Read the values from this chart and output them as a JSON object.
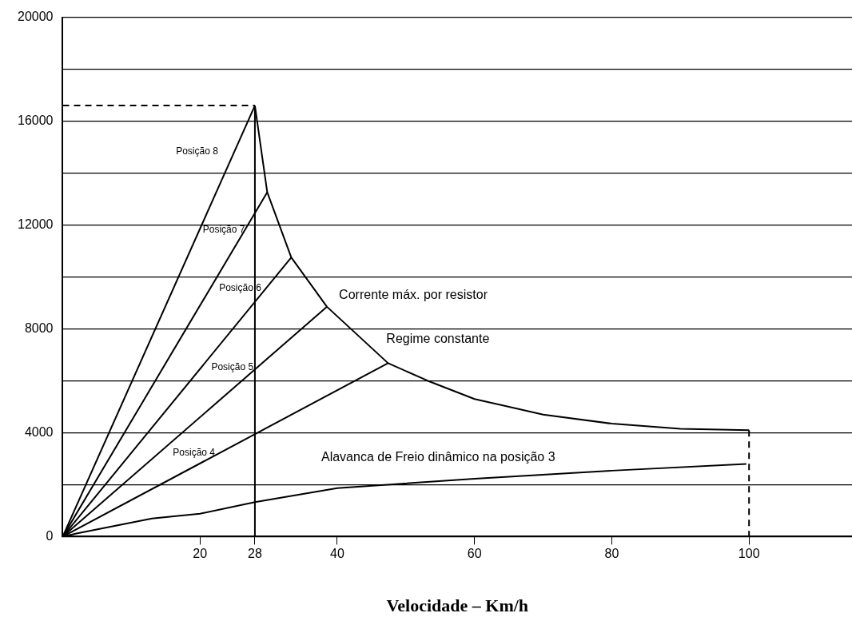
{
  "chart_data": {
    "type": "line",
    "xlabel": "Velocidade – Km/h",
    "xlim": [
      0,
      115
    ],
    "xticks": [
      20,
      28,
      40,
      60,
      80,
      100
    ],
    "ylim": [
      0,
      20000
    ],
    "yticks": [
      0,
      {
        "value": 2000,
        "label": null
      },
      4000,
      {
        "value": 6000,
        "label": null
      },
      8000,
      {
        "value": 10000,
        "label": null
      },
      12000,
      {
        "value": 14000,
        "label": null
      },
      16000,
      {
        "value": 18000,
        "label": null
      },
      20000
    ],
    "grid": "y",
    "legend": false,
    "marker": "none",
    "line_style": "solid",
    "series": [
      {
        "name": "Posição 8",
        "color": "#000000",
        "x": [
          0,
          28
        ],
        "values": [
          0,
          16600
        ]
      },
      {
        "name": "Posição 7",
        "color": "#000000",
        "x": [
          0,
          29.8
        ],
        "values": [
          0,
          13260
        ]
      },
      {
        "name": "Posição 6",
        "color": "#000000",
        "x": [
          0,
          33.3
        ],
        "values": [
          0,
          10750
        ]
      },
      {
        "name": "Posição 5",
        "color": "#000000",
        "x": [
          0,
          38.5
        ],
        "values": [
          0,
          8850
        ]
      },
      {
        "name": "Posição 4",
        "color": "#000000",
        "x": [
          0,
          47.4
        ],
        "values": [
          0,
          6680
        ]
      },
      {
        "name": "Alavanca de Freio dinâmico na posição 3",
        "color": "#000000",
        "x": [
          0,
          2,
          13,
          20,
          28,
          40,
          60,
          80,
          99.6
        ],
        "values": [
          0,
          120,
          700,
          880,
          1330,
          1870,
          2230,
          2540,
          2800
        ]
      },
      {
        "color": "#000000",
        "x": [
          28,
          29.8,
          33.3,
          38.5,
          47.4,
          53.2,
          60,
          70,
          80,
          90,
          100
        ],
        "values": [
          16600,
          13260,
          10750,
          8850,
          6680,
          6000,
          5300,
          4700,
          4350,
          4150,
          4100
        ]
      },
      {
        "color": "#000000",
        "x": [
          28,
          28
        ],
        "values": [
          0,
          16600
        ]
      },
      {
        "color": "#000000",
        "line_style": "dashed",
        "x": [
          0,
          28
        ],
        "values": [
          16600,
          16600
        ]
      },
      {
        "color": "#000000",
        "line_style": "dashed",
        "x": [
          100,
          100
        ],
        "values": [
          4100,
          0
        ]
      }
    ],
    "annotations": [
      "Corrente máx. por resistor",
      "Regime constante"
    ]
  }
}
